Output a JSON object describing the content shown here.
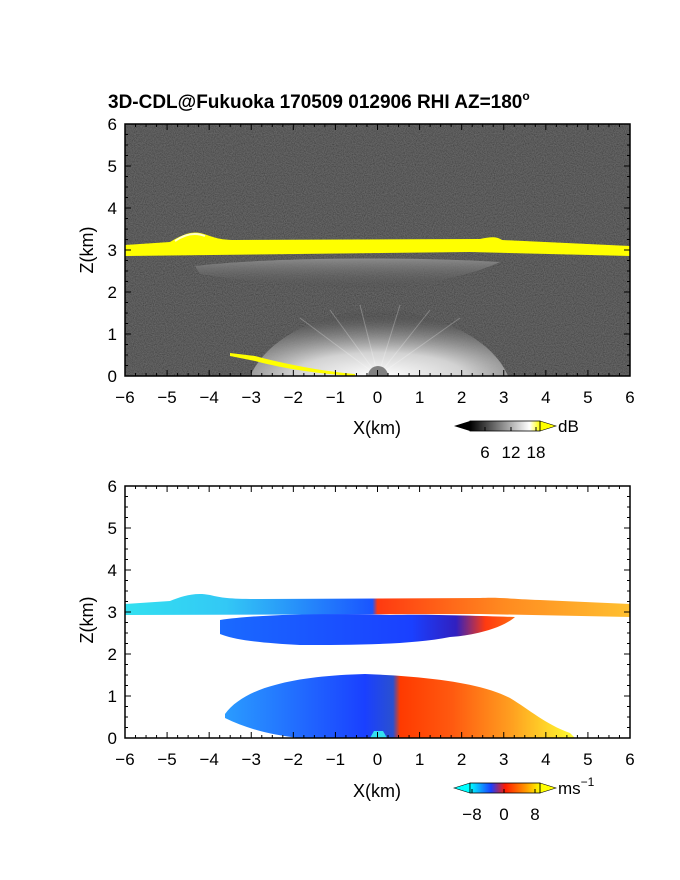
{
  "title": "3D-CDL@Fukuoka 170509 012906 RHI AZ=180",
  "title_degree": "o",
  "chart_data": [
    {
      "type": "heatmap",
      "name": "reflectivity",
      "xlabel": "X(km)",
      "ylabel": "Z(km)",
      "xlim": [
        -6,
        6
      ],
      "ylim": [
        0,
        6
      ],
      "xticks": [
        -6,
        -5,
        -4,
        -3,
        -2,
        -1,
        0,
        1,
        2,
        3,
        4,
        5,
        6
      ],
      "yticks": [
        0,
        1,
        2,
        3,
        4,
        5,
        6
      ],
      "background": "noisy dark grey",
      "colorbar": {
        "unit": "dB",
        "ticks": [
          6,
          12,
          18
        ],
        "colors": [
          "#000000",
          "#ffffff",
          "#ffff00"
        ]
      },
      "features": [
        {
          "layer": "bright band (saturated yellow)",
          "z_km": [
            2.9,
            3.2
          ],
          "x_km": [
            -6,
            6
          ],
          "bump_peak": {
            "x_km": -4.3,
            "z_km": 3.35
          }
        },
        {
          "layer": "grey haze layer",
          "z_km": [
            2.2,
            2.8
          ],
          "x_km": [
            -4.5,
            3.5
          ]
        },
        {
          "layer": "near-ground returns fanning from radar",
          "z_km": [
            0,
            1.3
          ],
          "x_km": [
            -3,
            3
          ]
        },
        {
          "layer": "ground clutter (yellow)",
          "z_km": [
            0,
            0.5
          ],
          "x_km": [
            -3.5,
            0
          ]
        }
      ]
    },
    {
      "type": "heatmap",
      "name": "doppler_velocity",
      "xlabel": "X(km)",
      "ylabel": "Z(km)",
      "xlim": [
        -6,
        6
      ],
      "ylim": [
        0,
        6
      ],
      "xticks": [
        -6,
        -5,
        -4,
        -3,
        -2,
        -1,
        0,
        1,
        2,
        3,
        4,
        5,
        6
      ],
      "yticks": [
        0,
        1,
        2,
        3,
        4,
        5,
        6
      ],
      "colorbar": {
        "unit": "ms",
        "unit_exp": "−1",
        "ticks": [
          "−8",
          "0",
          "8"
        ],
        "colors": [
          "#00ffff",
          "#1a40ff",
          "#ff1a00",
          "#ffff00"
        ]
      },
      "features": [
        {
          "layer": "upper layer",
          "z_km": [
            2.9,
            3.35
          ],
          "x_km": [
            -6,
            6
          ],
          "velocity_range": [
            -8,
            8
          ]
        },
        {
          "layer": "middle layer",
          "z_km": [
            2.2,
            2.8
          ],
          "x_km": [
            -4,
            3.2
          ],
          "velocity_range": [
            -6,
            4
          ]
        },
        {
          "layer": "lower layer",
          "z_km": [
            0,
            1.45
          ],
          "x_km": [
            -3.5,
            5.5
          ],
          "velocity_range": [
            -8,
            8
          ]
        }
      ]
    }
  ]
}
